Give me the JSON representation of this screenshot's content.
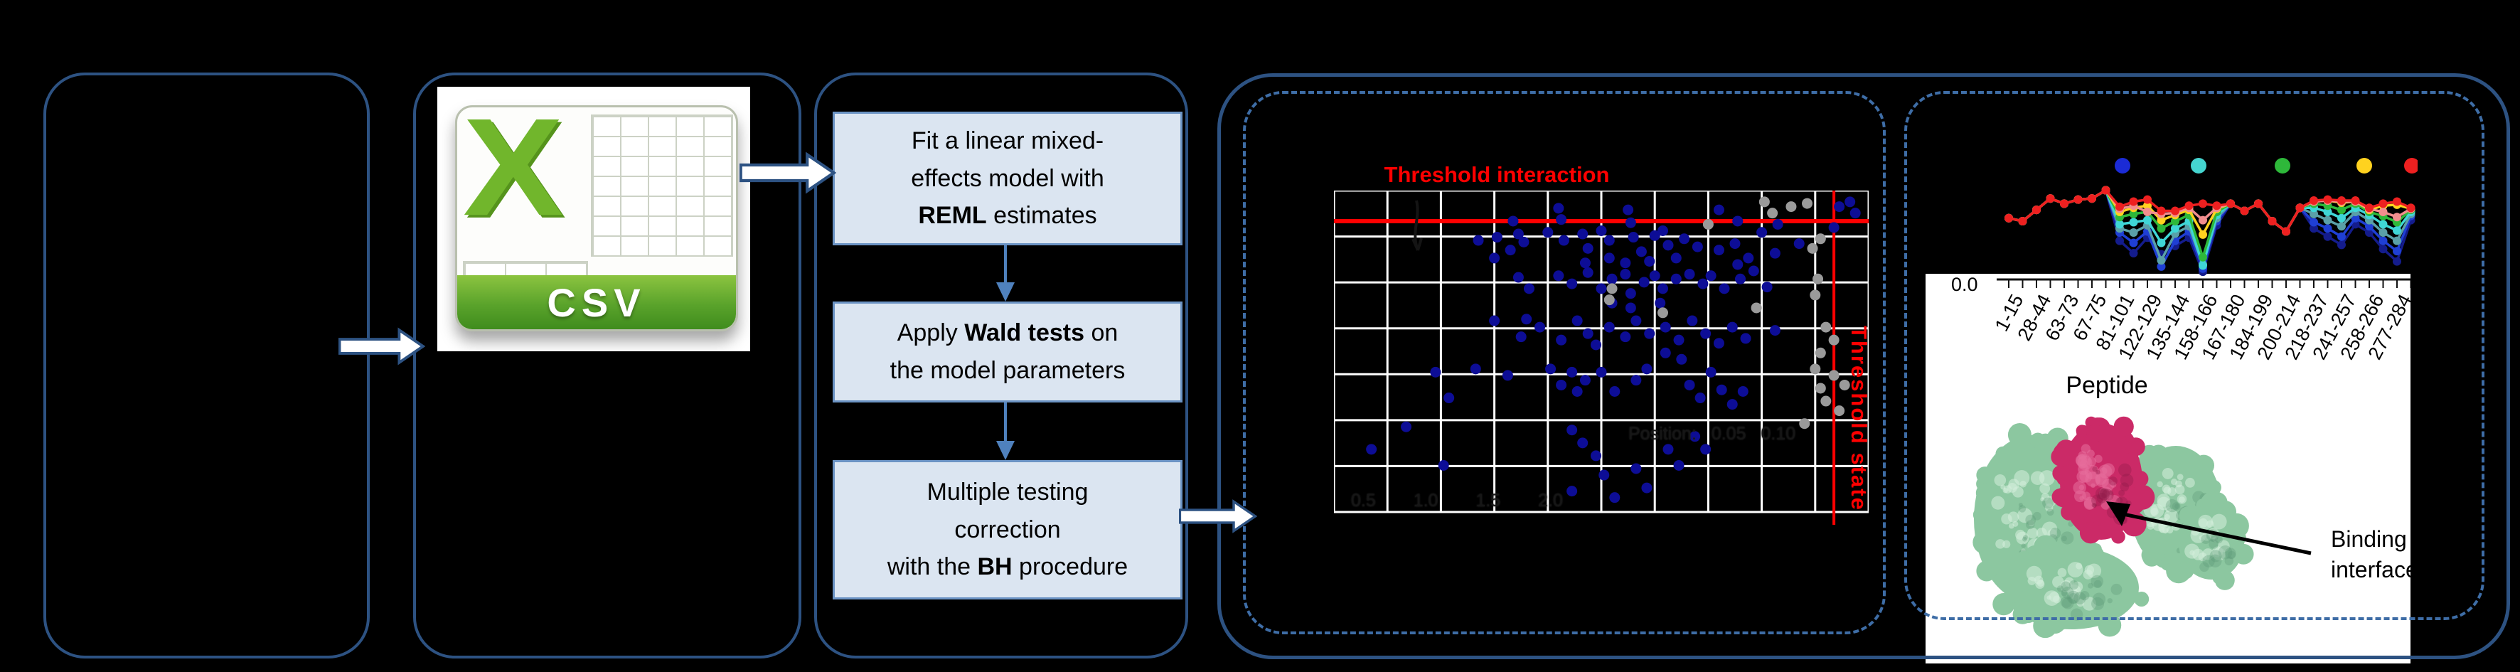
{
  "colors": {
    "background": "#000000",
    "group_border": "#2d5282",
    "dashed_border": "#3e6da6",
    "step_fill": "#dbe5f1",
    "step_border": "#6b93c4",
    "connector": "#4f81bd",
    "threshold_red": "#ff0000",
    "scatter_blue": "#0d0d96",
    "scatter_gray": "#9a9a9a",
    "grid_white": "#ffffff",
    "csv_green": "#71b62c",
    "protein_green": "#8cc7a0",
    "protein_magenta": "#cb2a67"
  },
  "csv": {
    "icon_letter": "X",
    "file_label": "CSV"
  },
  "steps": {
    "step1": {
      "l1": "Fit a linear mixed-",
      "l2": "effects model with",
      "bold": "REML",
      "post": " estimates"
    },
    "step2": {
      "pre": "Apply ",
      "bold": "Wald tests",
      "post": " on",
      "l2": "the model parameters"
    },
    "step3": {
      "l1": "Multiple testing",
      "l2": "correction",
      "pre": "with the ",
      "bold": "BH",
      "post": " procedure"
    }
  },
  "annotation": {
    "binding_line1": "Binding",
    "binding_line2": "interface"
  },
  "chart_data": [
    {
      "type": "scatter",
      "title": "Threshold interaction",
      "right_label": "Threshold state",
      "grid": {
        "cols": 10,
        "rows": 7,
        "grid_on": true
      },
      "threshold_h_frac": 0.095,
      "threshold_v_frac": 0.935,
      "ghost_axis_ticks": "0.5 1.0 1.5 2.0",
      "ghost_legend": "Position: 0.05 0.10",
      "legend_position": "none",
      "points": [
        [
          0.335,
          0.095,
          "b"
        ],
        [
          0.345,
          0.135,
          "b"
        ],
        [
          0.355,
          0.16,
          "b"
        ],
        [
          0.305,
          0.145,
          "b"
        ],
        [
          0.27,
          0.155,
          "b"
        ],
        [
          0.42,
          0.055,
          "b"
        ],
        [
          0.425,
          0.09,
          "b"
        ],
        [
          0.55,
          0.06,
          "b"
        ],
        [
          0.555,
          0.1,
          "b"
        ],
        [
          0.615,
          0.125,
          "b"
        ],
        [
          0.72,
          0.06,
          "b"
        ],
        [
          0.755,
          0.095,
          "b"
        ],
        [
          0.83,
          0.105,
          "b"
        ],
        [
          0.945,
          0.05,
          "b"
        ],
        [
          0.965,
          0.035,
          "b"
        ],
        [
          0.975,
          0.07,
          "b"
        ],
        [
          0.935,
          0.115,
          "b"
        ],
        [
          0.3,
          0.21,
          "b"
        ],
        [
          0.33,
          0.185,
          "b"
        ],
        [
          0.4,
          0.13,
          "b"
        ],
        [
          0.43,
          0.155,
          "b"
        ],
        [
          0.465,
          0.135,
          "b"
        ],
        [
          0.475,
          0.18,
          "b"
        ],
        [
          0.5,
          0.125,
          "b"
        ],
        [
          0.515,
          0.155,
          "b"
        ],
        [
          0.56,
          0.145,
          "b"
        ],
        [
          0.575,
          0.19,
          "b"
        ],
        [
          0.6,
          0.14,
          "b"
        ],
        [
          0.625,
          0.17,
          "b"
        ],
        [
          0.655,
          0.15,
          "b"
        ],
        [
          0.68,
          0.175,
          "b"
        ],
        [
          0.72,
          0.185,
          "b"
        ],
        [
          0.75,
          0.165,
          "b"
        ],
        [
          0.8,
          0.13,
          "b"
        ],
        [
          0.825,
          0.195,
          "b"
        ],
        [
          0.87,
          0.165,
          "b"
        ],
        [
          0.755,
          0.23,
          "b"
        ],
        [
          0.775,
          0.21,
          "b"
        ],
        [
          0.64,
          0.21,
          "b"
        ],
        [
          0.59,
          0.22,
          "b"
        ],
        [
          0.545,
          0.225,
          "b"
        ],
        [
          0.515,
          0.21,
          "b"
        ],
        [
          0.47,
          0.225,
          "b"
        ],
        [
          0.345,
          0.27,
          "b"
        ],
        [
          0.365,
          0.305,
          "b"
        ],
        [
          0.42,
          0.265,
          "b"
        ],
        [
          0.445,
          0.29,
          "b"
        ],
        [
          0.475,
          0.255,
          "b"
        ],
        [
          0.5,
          0.305,
          "b"
        ],
        [
          0.52,
          0.275,
          "b"
        ],
        [
          0.545,
          0.26,
          "b"
        ],
        [
          0.555,
          0.32,
          "b"
        ],
        [
          0.58,
          0.285,
          "b"
        ],
        [
          0.6,
          0.265,
          "b"
        ],
        [
          0.615,
          0.305,
          "b"
        ],
        [
          0.64,
          0.275,
          "b"
        ],
        [
          0.665,
          0.26,
          "b"
        ],
        [
          0.69,
          0.29,
          "b"
        ],
        [
          0.705,
          0.265,
          "b"
        ],
        [
          0.73,
          0.305,
          "b"
        ],
        [
          0.76,
          0.275,
          "b"
        ],
        [
          0.785,
          0.25,
          "b"
        ],
        [
          0.81,
          0.3,
          "b"
        ],
        [
          0.52,
          0.35,
          "b"
        ],
        [
          0.555,
          0.365,
          "b"
        ],
        [
          0.61,
          0.35,
          "b"
        ],
        [
          0.36,
          0.4,
          "b"
        ],
        [
          0.3,
          0.405,
          "b"
        ],
        [
          0.35,
          0.455,
          "b"
        ],
        [
          0.385,
          0.425,
          "b"
        ],
        [
          0.425,
          0.465,
          "b"
        ],
        [
          0.455,
          0.405,
          "b"
        ],
        [
          0.475,
          0.445,
          "b"
        ],
        [
          0.49,
          0.48,
          "b"
        ],
        [
          0.515,
          0.425,
          "b"
        ],
        [
          0.545,
          0.455,
          "b"
        ],
        [
          0.565,
          0.405,
          "b"
        ],
        [
          0.59,
          0.445,
          "b"
        ],
        [
          0.62,
          0.425,
          "b"
        ],
        [
          0.645,
          0.465,
          "b"
        ],
        [
          0.67,
          0.405,
          "b"
        ],
        [
          0.695,
          0.445,
          "b"
        ],
        [
          0.72,
          0.475,
          "b"
        ],
        [
          0.745,
          0.425,
          "b"
        ],
        [
          0.77,
          0.46,
          "b"
        ],
        [
          0.825,
          0.435,
          "b"
        ],
        [
          0.62,
          0.505,
          "b"
        ],
        [
          0.65,
          0.525,
          "b"
        ],
        [
          0.19,
          0.565,
          "b"
        ],
        [
          0.215,
          0.645,
          "b"
        ],
        [
          0.265,
          0.555,
          "b"
        ],
        [
          0.325,
          0.575,
          "b"
        ],
        [
          0.405,
          0.555,
          "b"
        ],
        [
          0.425,
          0.605,
          "b"
        ],
        [
          0.445,
          0.565,
          "b"
        ],
        [
          0.455,
          0.625,
          "b"
        ],
        [
          0.47,
          0.59,
          "b"
        ],
        [
          0.5,
          0.565,
          "b"
        ],
        [
          0.525,
          0.625,
          "b"
        ],
        [
          0.565,
          0.59,
          "b"
        ],
        [
          0.585,
          0.555,
          "b"
        ],
        [
          0.665,
          0.605,
          "b"
        ],
        [
          0.685,
          0.645,
          "b"
        ],
        [
          0.705,
          0.565,
          "b"
        ],
        [
          0.725,
          0.62,
          "b"
        ],
        [
          0.745,
          0.665,
          "b"
        ],
        [
          0.765,
          0.625,
          "b"
        ],
        [
          0.07,
          0.805,
          "b"
        ],
        [
          0.135,
          0.735,
          "b"
        ],
        [
          0.205,
          0.855,
          "b"
        ],
        [
          0.445,
          0.745,
          "b"
        ],
        [
          0.465,
          0.785,
          "b"
        ],
        [
          0.49,
          0.825,
          "b"
        ],
        [
          0.505,
          0.885,
          "b"
        ],
        [
          0.565,
          0.865,
          "b"
        ],
        [
          0.585,
          0.925,
          "b"
        ],
        [
          0.625,
          0.805,
          "b"
        ],
        [
          0.645,
          0.855,
          "b"
        ],
        [
          0.675,
          0.765,
          "b"
        ],
        [
          0.695,
          0.805,
          "b"
        ],
        [
          0.445,
          0.935,
          "b"
        ],
        [
          0.525,
          0.955,
          "b"
        ],
        [
          0.805,
          0.035,
          "g"
        ],
        [
          0.82,
          0.07,
          "g"
        ],
        [
          0.855,
          0.05,
          "g"
        ],
        [
          0.885,
          0.04,
          "g"
        ],
        [
          0.7,
          0.105,
          "g"
        ],
        [
          0.895,
          0.18,
          "g"
        ],
        [
          0.91,
          0.15,
          "g"
        ],
        [
          0.52,
          0.305,
          "g"
        ],
        [
          0.515,
          0.34,
          "g"
        ],
        [
          0.615,
          0.38,
          "g"
        ],
        [
          0.79,
          0.365,
          "g"
        ],
        [
          0.905,
          0.275,
          "g"
        ],
        [
          0.9,
          0.325,
          "g"
        ],
        [
          0.92,
          0.425,
          "g"
        ],
        [
          0.935,
          0.465,
          "g"
        ],
        [
          0.91,
          0.505,
          "g"
        ],
        [
          0.9,
          0.555,
          "g"
        ],
        [
          0.935,
          0.575,
          "g"
        ],
        [
          0.91,
          0.615,
          "g"
        ],
        [
          0.955,
          0.605,
          "g"
        ],
        [
          0.92,
          0.655,
          "g"
        ],
        [
          0.945,
          0.685,
          "g"
        ],
        [
          0.88,
          0.725,
          "g"
        ]
      ]
    },
    {
      "type": "line",
      "xlabel": "Peptide",
      "y_tick_label": "0.0",
      "x_count": 30,
      "categories": [
        "1-15",
        "28-44",
        "63-73",
        "67-75",
        "81-101",
        "122-129",
        "135-144",
        "158-166",
        "167-180",
        "184-199",
        "200-214",
        "218-237",
        "241-257",
        "258-266",
        "277-284"
      ],
      "legend_dot_colors": [
        "#1b2bd6",
        "#45d5d0",
        "#2eb83a",
        "#ffd21f",
        "#ee2020"
      ],
      "series": [
        {
          "name": "navy",
          "color": "#141c8c",
          "values": [
            54,
            51,
            62,
            73,
            68,
            72,
            73,
            81,
            32,
            20,
            35,
            19,
            27,
            35,
            2,
            47,
            68,
            61,
            68,
            51,
            41,
            64,
            44,
            36,
            28,
            48,
            40,
            24,
            12,
            52
          ]
        },
        {
          "name": "blue",
          "color": "#1f3fd4",
          "values": [
            54,
            51,
            62,
            73,
            68,
            72,
            73,
            81,
            40,
            30,
            41,
            7,
            32,
            41,
            5,
            51,
            68,
            61,
            68,
            51,
            41,
            64,
            50,
            44,
            36,
            54,
            46,
            32,
            22,
            56
          ]
        },
        {
          "name": "cadet",
          "color": "#5aa0a8",
          "values": [
            54,
            51,
            62,
            73,
            68,
            72,
            73,
            81,
            44,
            40,
            47,
            13,
            39,
            46,
            9,
            54,
            68,
            61,
            68,
            51,
            41,
            64,
            58,
            52,
            46,
            60,
            52,
            40,
            32,
            58
          ]
        },
        {
          "name": "cyan",
          "color": "#3fd6d6",
          "values": [
            54,
            51,
            62,
            73,
            68,
            72,
            73,
            81,
            48,
            50,
            52,
            30,
            44,
            51,
            8,
            57,
            68,
            61,
            68,
            51,
            41,
            64,
            64,
            60,
            54,
            64,
            57,
            48,
            42,
            60
          ]
        },
        {
          "name": "green",
          "color": "#2eb83a",
          "values": [
            54,
            51,
            62,
            73,
            68,
            72,
            73,
            81,
            55,
            58,
            60,
            44,
            51,
            57,
            16,
            60,
            68,
            61,
            68,
            51,
            41,
            64,
            68,
            66,
            62,
            68,
            60,
            56,
            50,
            62
          ]
        },
        {
          "name": "yellow",
          "color": "#ffd21f",
          "values": [
            54,
            51,
            62,
            73,
            68,
            72,
            73,
            81,
            60,
            64,
            66,
            52,
            57,
            62,
            38,
            63,
            68,
            61,
            68,
            51,
            41,
            64,
            70,
            71,
            69,
            70,
            62,
            66,
            67,
            63
          ]
        },
        {
          "name": "salmon",
          "color": "#f28e8e",
          "values": [
            54,
            51,
            62,
            73,
            68,
            72,
            73,
            81,
            63,
            66,
            60,
            58,
            59,
            64,
            52,
            64,
            68,
            61,
            68,
            51,
            41,
            64,
            70,
            71,
            70,
            70,
            63,
            60,
            55,
            63
          ]
        },
        {
          "name": "red",
          "color": "#ee2020",
          "values": [
            54,
            51,
            62,
            73,
            68,
            72,
            73,
            81,
            65,
            70,
            72,
            61,
            61,
            66,
            68,
            66,
            68,
            61,
            68,
            51,
            41,
            64,
            71,
            72,
            71,
            71,
            64,
            68,
            70,
            64
          ]
        }
      ]
    }
  ]
}
